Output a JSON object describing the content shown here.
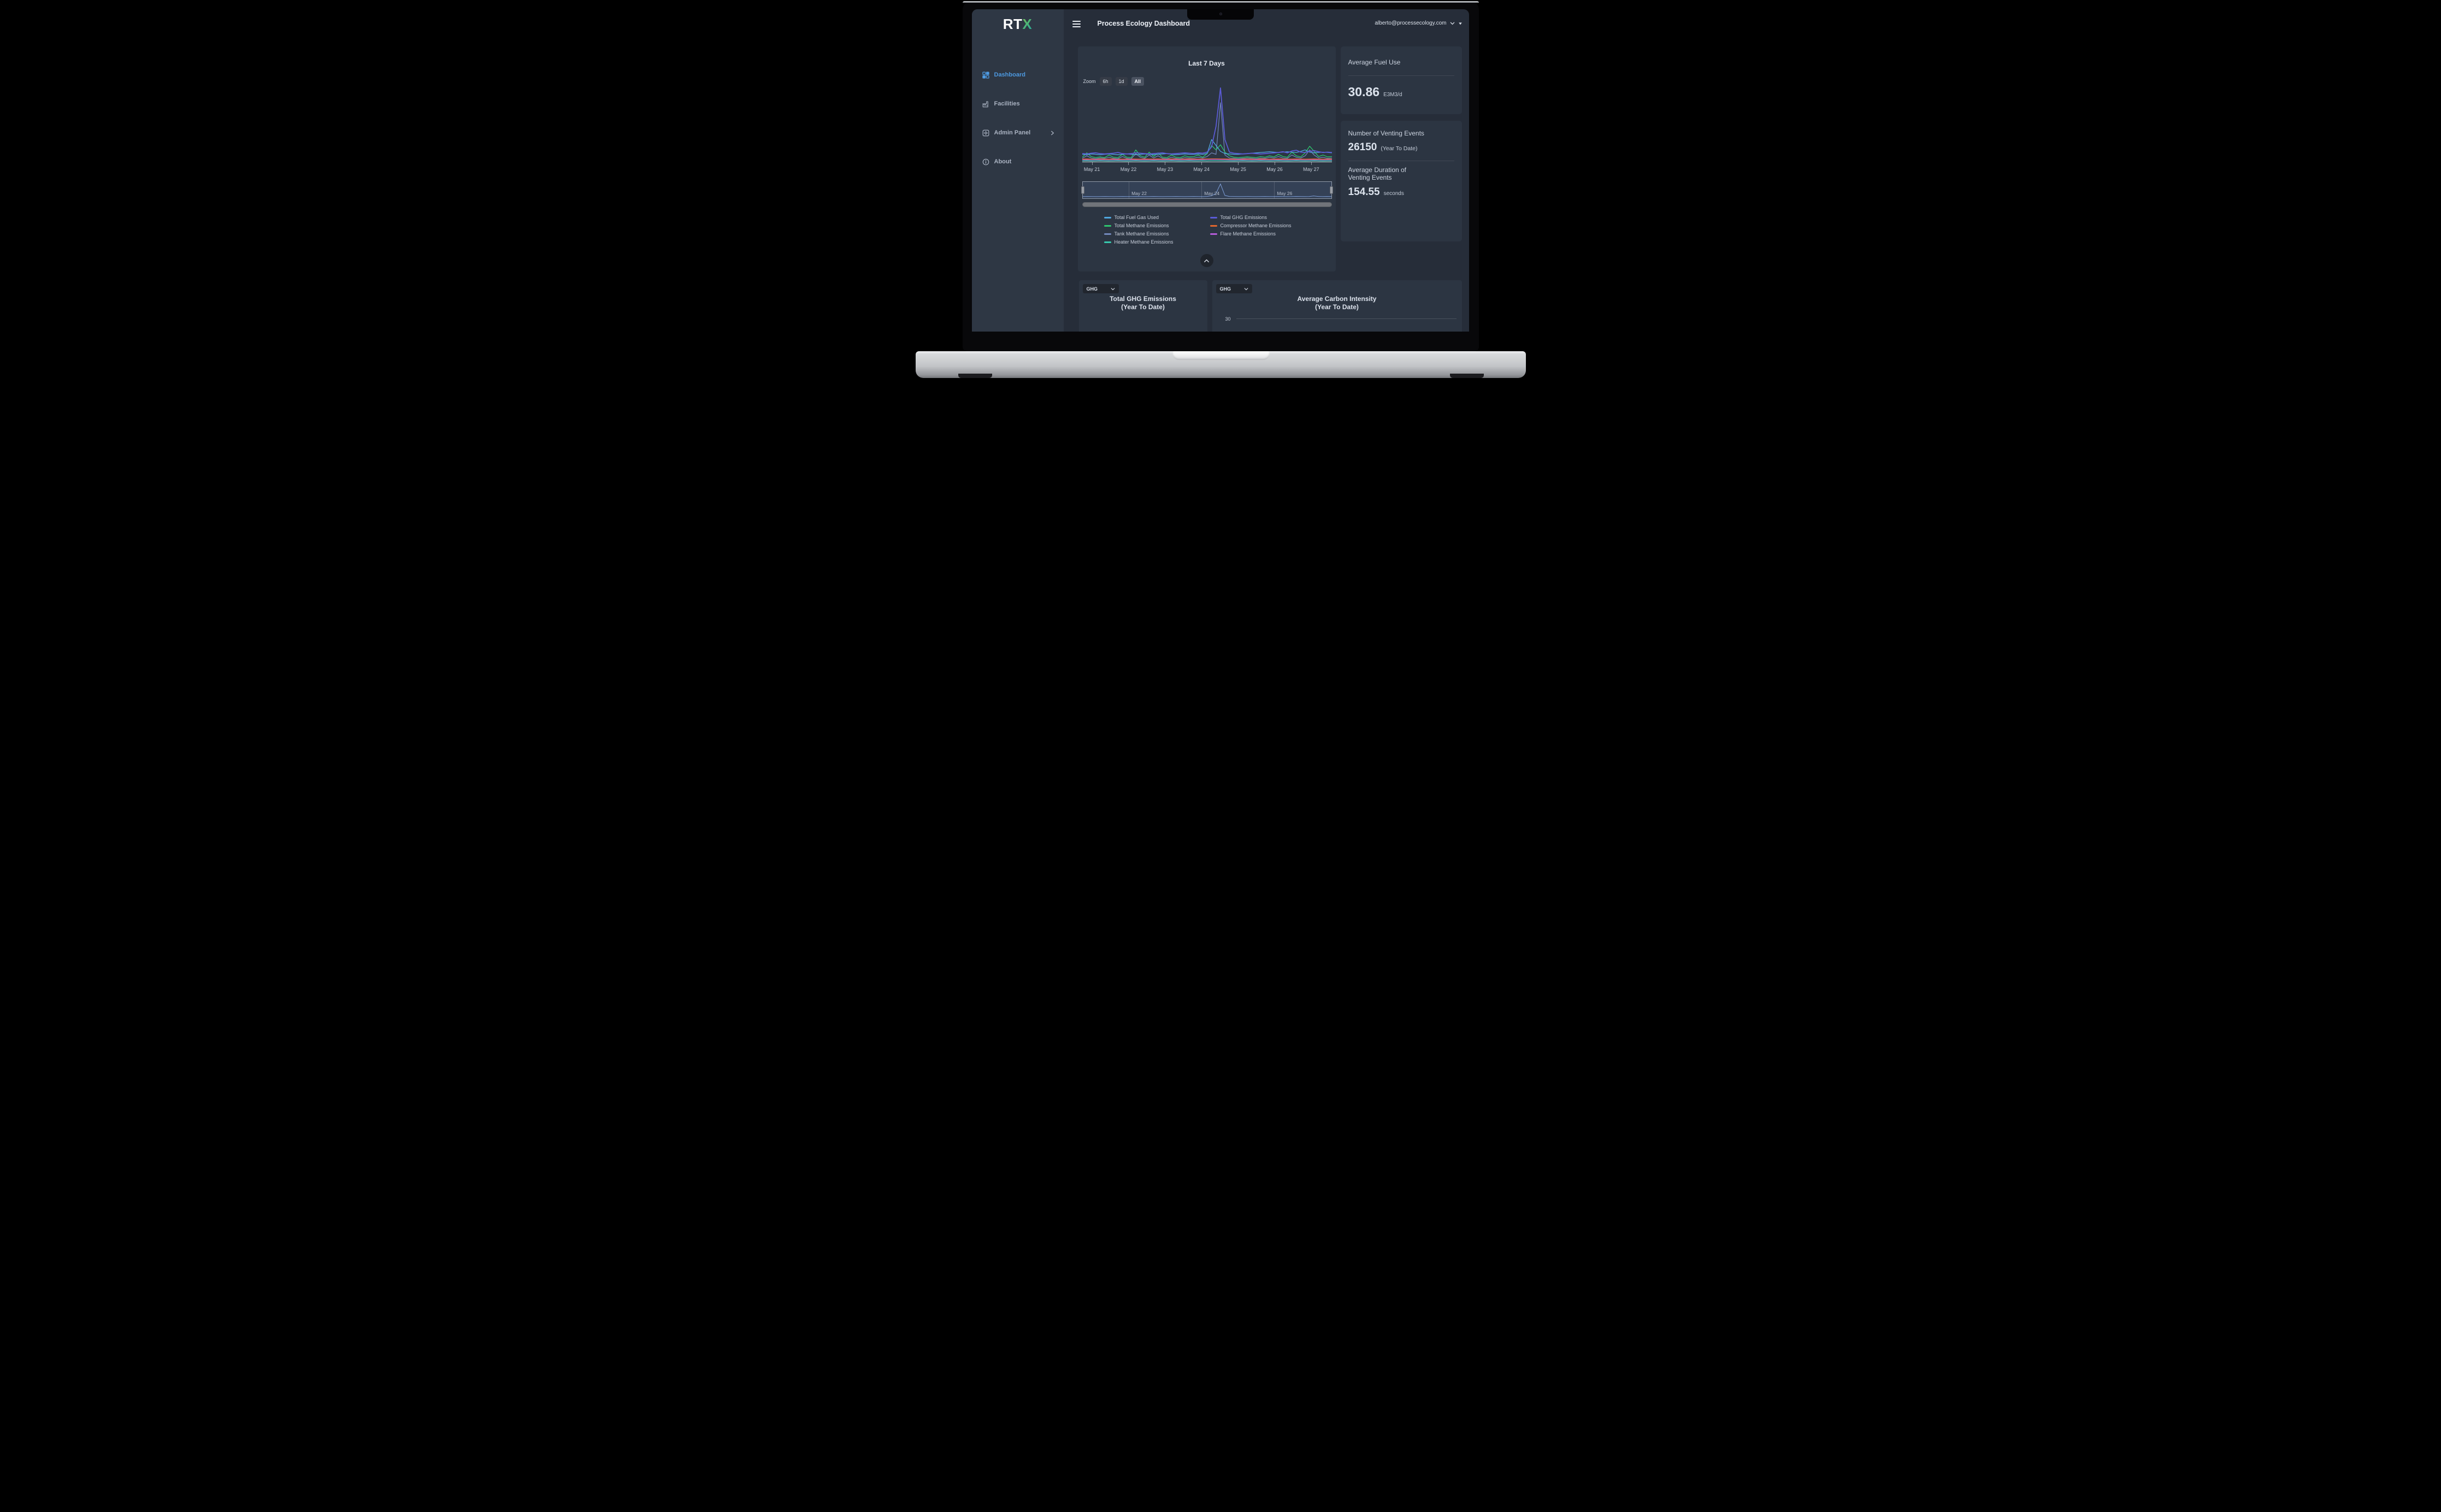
{
  "header": {
    "title": "Process Ecology Dashboard",
    "user_email": "alberto@processecology.com"
  },
  "sidebar": {
    "logo": {
      "primary": "RT",
      "accent": "X"
    },
    "items": [
      {
        "label": "Dashboard",
        "icon": "dashboard-grid",
        "active": true,
        "has_submenu": false
      },
      {
        "label": "Facilities",
        "icon": "factory",
        "active": false,
        "has_submenu": false
      },
      {
        "label": "Admin Panel",
        "icon": "admin-gear",
        "active": false,
        "has_submenu": true
      },
      {
        "label": "About",
        "icon": "info-circle",
        "active": false,
        "has_submenu": false
      }
    ]
  },
  "main_chart": {
    "title": "Last 7 Days",
    "zoom_label": "Zoom",
    "zoom_buttons": [
      {
        "label": "6h",
        "selected": false
      },
      {
        "label": "1d",
        "selected": false
      },
      {
        "label": "All",
        "selected": true
      }
    ],
    "x_labels": [
      "May 21",
      "May 22",
      "May 23",
      "May 24",
      "May 25",
      "May 26",
      "May 27"
    ],
    "navigator_labels": [
      "May 22",
      "May 24",
      "May 26"
    ],
    "legend": [
      {
        "label": "Total Fuel Gas Used",
        "color": "#4FA8E0"
      },
      {
        "label": "Total GHG Emissions",
        "color": "#5B5BD6"
      },
      {
        "label": "Total Methane Emissions",
        "color": "#2FC56F"
      },
      {
        "label": "Compressor Methane Emissions",
        "color": "#E0662E"
      },
      {
        "label": "Tank Methane Emissions",
        "color": "#7389BC"
      },
      {
        "label": "Flare Methane Emissions",
        "color": "#B55CD9"
      },
      {
        "label": "Heater Methane Emissions",
        "color": "#38C9AE"
      }
    ]
  },
  "chart_data": [
    {
      "type": "line",
      "title": "Last 7 Days",
      "xlabel": "date (May 21 - May 27)",
      "ylabel": "relative level (% of plot height; no y-axis labels shown in chart)",
      "x_unit": "hours since May 21 00:00; 57 samples evenly spaced across x_range",
      "x_range": [
        -6.5,
        157.5
      ],
      "x_ticks": [
        0,
        24,
        48,
        72,
        96,
        120,
        144
      ],
      "x_tick_labels": [
        "May 21",
        "May 22",
        "May 23",
        "May 24",
        "May 25",
        "May 26",
        "May 27"
      ],
      "grid": false,
      "legend_position": "bottom",
      "annotations": "large emission spike around May 24 ~12:00",
      "series": [
        {
          "name": "Compressor Methane Emissions",
          "color": "#E0662E",
          "width": 1.6,
          "values": [
            3.5,
            3.6,
            3.4,
            3.5,
            3.7,
            3.5,
            3.4,
            3.6,
            3.5,
            3.4,
            3.5,
            3.6,
            3.5,
            3.4,
            3.6,
            3.5,
            3.5,
            3.6,
            3.4,
            3.5,
            3.6,
            3.5,
            3.4,
            3.5,
            3.6,
            3.5,
            3.5,
            3.6,
            3.7,
            3.8,
            3.8,
            3.7,
            3.6,
            3.5,
            3.4,
            3.5,
            3.6,
            3.5,
            3.4,
            3.5,
            3.6,
            3.5,
            3.4,
            3.5,
            3.6,
            3.5,
            3.4,
            3.5,
            3.6,
            3.5,
            3.4,
            3.5,
            3.6,
            3.5,
            3.4,
            3.5,
            3.5
          ]
        },
        {
          "name": "Flare Methane Emissions",
          "color": "#B55CD9",
          "width": 1.2,
          "values": [
            2.5,
            2.6,
            2.4,
            2.5,
            2.6,
            2.5,
            2.4,
            2.6,
            2.5,
            2.4,
            2.5,
            2.6,
            2.5,
            2.4,
            2.6,
            2.5,
            2.5,
            2.6,
            2.4,
            2.5,
            2.6,
            2.5,
            2.4,
            2.5,
            2.6,
            2.5,
            2.6,
            2.7,
            2.8,
            3,
            3,
            2.9,
            2.7,
            2.5,
            2.4,
            2.5,
            2.6,
            2.5,
            2.4,
            2.5,
            2.6,
            2.5,
            2.4,
            2.5,
            2.6,
            2.5,
            2.4,
            2.5,
            2.6,
            2.5,
            2.4,
            2.5,
            2.6,
            2.5,
            2.4,
            2.5,
            2.5
          ]
        },
        {
          "name": "Heater Methane Emissions",
          "color": "#38C9AE",
          "width": 1.4,
          "values": [
            1.2,
            1.3,
            1.1,
            1.2,
            1.3,
            1.2,
            1.1,
            1.2,
            1.3,
            1.2,
            1.1,
            1.2,
            1.3,
            1.2,
            1.1,
            1.2,
            1.3,
            1.2,
            1.1,
            1.2,
            1.3,
            1.2,
            1.1,
            1.2,
            1.3,
            1.2,
            1.2,
            1.3,
            1.2,
            1.4,
            1.4,
            1.3,
            1.2,
            1.2,
            1.1,
            1.2,
            1.3,
            1.2,
            1.1,
            1.2,
            1.3,
            1.2,
            1.1,
            1.2,
            1.3,
            1.2,
            1.1,
            1.2,
            1.3,
            1.2,
            1.1,
            1.2,
            1.3,
            1.2,
            1.1,
            1.2,
            1.2
          ]
        },
        {
          "name": "Tank Methane Emissions",
          "color": "#7389BC",
          "width": 1.2,
          "values": [
            4.5,
            8,
            5,
            4,
            5,
            4.5,
            6,
            4.5,
            4,
            7,
            4.5,
            4,
            11,
            6,
            4.5,
            9,
            5,
            8,
            4.5,
            4,
            6,
            4.5,
            4,
            5.5,
            5,
            5,
            6,
            5,
            7,
            12,
            10,
            80,
            9,
            5,
            4.5,
            4,
            4.5,
            5,
            4.5,
            4,
            5,
            4.5,
            6,
            5,
            7,
            5,
            4.5,
            9,
            6,
            5,
            8,
            16,
            9,
            5,
            6,
            4.5,
            5
          ]
        },
        {
          "name": "Total Methane Emissions",
          "color": "#2FC56F",
          "width": 1.3,
          "values": [
            6,
            12,
            7,
            5.5,
            6.5,
            5.5,
            9,
            6,
            5.5,
            10,
            6,
            5.5,
            16,
            8,
            6,
            13,
            7,
            12,
            6,
            5.5,
            9,
            6,
            5.5,
            8,
            6.5,
            7,
            9,
            6,
            11,
            22,
            16,
            23,
            13,
            8,
            6,
            5.5,
            6,
            6.5,
            6,
            5.5,
            7,
            6,
            8,
            6.5,
            10,
            7,
            6,
            13,
            8,
            6.5,
            12,
            21,
            14,
            7,
            9,
            6.5,
            7
          ]
        },
        {
          "name": "Total Fuel Gas Used",
          "color": "#4FA8E0",
          "width": 1.3,
          "values": [
            10,
            9.5,
            10.5,
            10,
            9.5,
            10,
            10.5,
            10,
            9.5,
            10,
            10.5,
            10,
            9.5,
            10,
            10.5,
            10,
            9.5,
            10,
            10.5,
            11,
            10,
            9.5,
            10,
            10.5,
            10,
            10,
            10.5,
            10,
            11,
            30,
            22,
            14,
            11,
            10.5,
            10,
            10,
            10.5,
            11,
            11.5,
            12,
            12.5,
            13,
            13.5,
            13,
            12.5,
            13,
            13.5,
            13,
            12.5,
            14,
            16,
            13,
            12,
            12.5,
            13,
            12.5,
            12
          ]
        },
        {
          "name": "Total GHG Emissions",
          "color": "#5B5BD6",
          "width": 1.8,
          "values": [
            11,
            10.5,
            11.5,
            12,
            11,
            10.5,
            11,
            11.5,
            12.5,
            11,
            10.5,
            11,
            12,
            11.5,
            11,
            10.5,
            11,
            11.5,
            12,
            11,
            10.5,
            11,
            11.5,
            12,
            11.5,
            11,
            12,
            11.5,
            13,
            20,
            48,
            100,
            30,
            13,
            11.5,
            11,
            10.5,
            11,
            11.5,
            11,
            10.5,
            11,
            11.5,
            12,
            12.5,
            13.5,
            12,
            14.5,
            15.5,
            13,
            12.5,
            14,
            15,
            13.5,
            12.5,
            13,
            12.5
          ]
        }
      ]
    },
    {
      "type": "line",
      "role": "navigator (range selector, full range selected)",
      "x_range": [
        -6.5,
        157.5
      ],
      "x_ticks": [
        24,
        72,
        120
      ],
      "x_tick_labels": [
        "May 22",
        "May 24",
        "May 26"
      ],
      "series": [
        {
          "name": "navigator outline",
          "color": "#7E9FD9",
          "width": 1,
          "values": [
            8,
            8.5,
            8,
            7.5,
            8,
            8.5,
            8,
            7.5,
            8,
            8.5,
            8,
            8,
            8.5,
            8,
            7.5,
            8,
            8.5,
            8,
            7.5,
            8,
            8,
            8.5,
            8,
            7.5,
            8,
            8.5,
            8,
            7.5,
            9,
            14,
            30,
            95,
            16,
            9,
            8.5,
            8,
            8,
            8.5,
            8,
            7.5,
            8,
            8.5,
            8,
            8,
            8.5,
            8,
            7.5,
            8,
            9,
            8.5,
            8,
            8.5,
            12,
            9,
            8,
            8.5,
            8
          ]
        }
      ]
    },
    {
      "type": "line",
      "title": "Total GHG Emissions (Year To Date)",
      "note": "chart body cut off by bottom screen edge; only selector and title visible"
    },
    {
      "type": "line",
      "title": "Average Carbon Intensity (Year To Date)",
      "visible_y_ticks": [
        30
      ],
      "note": "only y gridline at 30 visible; rest cut off by bottom screen edge"
    }
  ],
  "stats": {
    "fuel": {
      "title": "Average Fuel Use",
      "value": "30.86",
      "unit": "E3M3/d"
    },
    "venting_count": {
      "title": "Number of Venting Events",
      "value": "26150",
      "qualifier": "(Year To Date)"
    },
    "venting_duration": {
      "title_line1": "Average Duration of",
      "title_line2": "Venting Events",
      "value": "154.55",
      "unit": "seconds"
    }
  },
  "bottom_left": {
    "dropdown_value": "GHG",
    "title_line1": "Total GHG Emissions",
    "title_line2": "(Year To Date)"
  },
  "bottom_right": {
    "dropdown_value": "GHG",
    "title_line1": "Average Carbon Intensity",
    "title_line2": "(Year To Date)",
    "y_tick": "30"
  }
}
